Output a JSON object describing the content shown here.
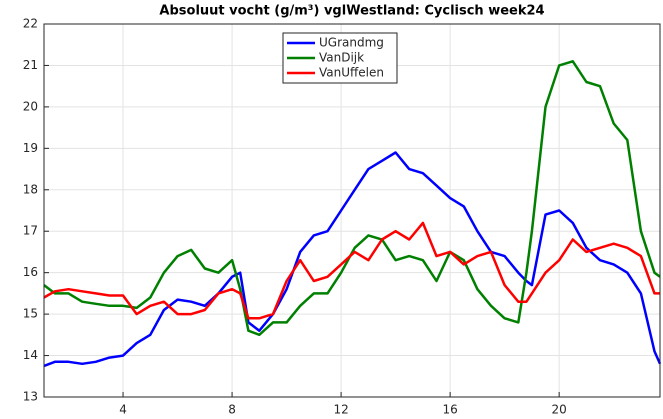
{
  "chart_data": {
    "type": "line",
    "title": "Absoluut vocht (g/m³) vglWestland: Cyclisch week24",
    "x": [
      1.1,
      1.5,
      2,
      2.5,
      3,
      3.5,
      4,
      4.5,
      5,
      5.5,
      6,
      6.5,
      7,
      7.5,
      8,
      8.3,
      8.6,
      9,
      9.5,
      10,
      10.5,
      11,
      11.5,
      12,
      12.5,
      13,
      13.5,
      14,
      14.5,
      15,
      15.5,
      16,
      16.5,
      17,
      17.5,
      18,
      18.5,
      18.8,
      19,
      19.5,
      20,
      20.5,
      21,
      21.5,
      22,
      22.5,
      23,
      23.5,
      23.7
    ],
    "series": [
      {
        "name": "UGrandmg",
        "color": "#0000ff",
        "values": [
          13.75,
          13.85,
          13.85,
          13.8,
          13.85,
          13.95,
          14.0,
          14.3,
          14.5,
          15.1,
          15.35,
          15.3,
          15.2,
          15.5,
          15.9,
          16.0,
          14.8,
          14.6,
          15.0,
          15.6,
          16.5,
          16.9,
          17.0,
          17.5,
          18.0,
          18.5,
          18.7,
          18.9,
          18.5,
          18.4,
          18.1,
          17.8,
          17.6,
          17.0,
          16.5,
          16.4,
          16.0,
          15.8,
          15.7,
          17.4,
          17.5,
          17.2,
          16.6,
          16.3,
          16.2,
          16.0,
          15.5,
          14.1,
          13.8
        ]
      },
      {
        "name": "VanDijk",
        "color": "#008000",
        "values": [
          15.7,
          15.5,
          15.5,
          15.3,
          15.25,
          15.2,
          15.2,
          15.15,
          15.4,
          16.0,
          16.4,
          16.55,
          16.1,
          16.0,
          16.3,
          15.6,
          14.6,
          14.5,
          14.8,
          14.8,
          15.2,
          15.5,
          15.5,
          16.0,
          16.6,
          16.9,
          16.8,
          16.3,
          16.4,
          16.3,
          15.8,
          16.5,
          16.3,
          15.6,
          15.2,
          14.9,
          14.8,
          16.0,
          17.0,
          20.0,
          21.0,
          21.1,
          20.6,
          20.5,
          19.6,
          19.2,
          17.0,
          16.0,
          15.9
        ]
      },
      {
        "name": "VanUffelen",
        "color": "#ff0000",
        "values": [
          15.4,
          15.55,
          15.6,
          15.55,
          15.5,
          15.45,
          15.45,
          15.0,
          15.2,
          15.3,
          15.0,
          15.0,
          15.1,
          15.5,
          15.6,
          15.5,
          14.9,
          14.9,
          15.0,
          15.8,
          16.3,
          15.8,
          15.9,
          16.2,
          16.5,
          16.3,
          16.8,
          17.0,
          16.8,
          17.2,
          16.4,
          16.5,
          16.2,
          16.4,
          16.5,
          15.7,
          15.3,
          15.3,
          15.5,
          16.0,
          16.3,
          16.8,
          16.5,
          16.6,
          16.7,
          16.6,
          16.4,
          15.5,
          15.5
        ]
      }
    ],
    "xlim": [
      1.1,
      23.7
    ],
    "xticks": [
      4,
      8,
      12,
      16,
      20
    ],
    "ylim": [
      13,
      22
    ],
    "yticks": [
      13,
      14,
      15,
      16,
      17,
      18,
      19,
      20,
      21,
      22
    ],
    "grid": true,
    "legend": "top"
  }
}
